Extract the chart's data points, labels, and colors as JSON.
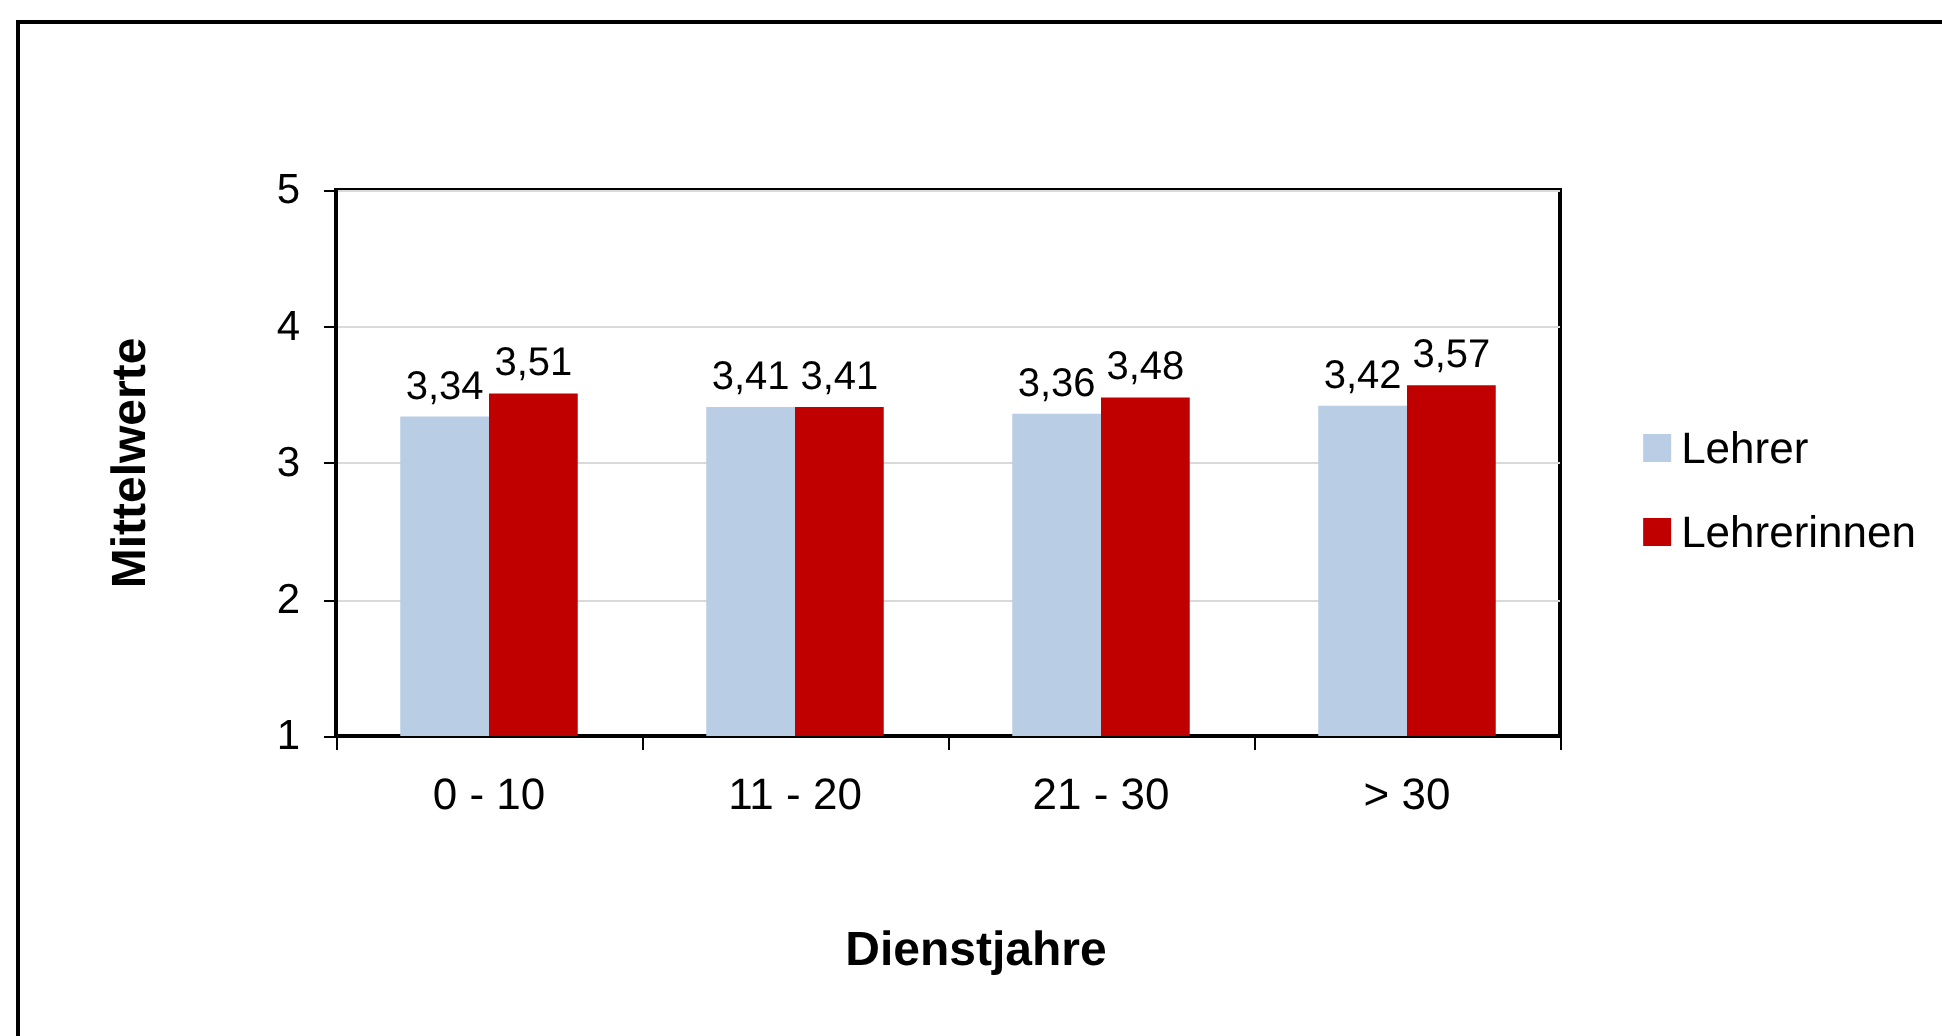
{
  "chart_data": {
    "type": "bar",
    "xlabel": "Dienstjahre",
    "ylabel": "Mittelwerte",
    "categories": [
      "0 - 10",
      "11 - 20",
      "21 - 30",
      "> 30"
    ],
    "series": [
      {
        "name": "Lehrer",
        "color": "#b9cde5",
        "values": [
          3.34,
          3.41,
          3.36,
          3.42
        ],
        "value_labels": [
          "3,34",
          "3,41",
          "3,36",
          "3,42"
        ]
      },
      {
        "name": "Lehrerinnen",
        "color": "#c00000",
        "values": [
          3.51,
          3.41,
          3.48,
          3.57
        ],
        "value_labels": [
          "3,51",
          "3,41",
          "3,48",
          "3,57"
        ]
      }
    ],
    "ylim": [
      1,
      5
    ],
    "yticks": [
      1,
      2,
      3,
      4,
      5
    ],
    "grid": "y",
    "legend": "right"
  }
}
